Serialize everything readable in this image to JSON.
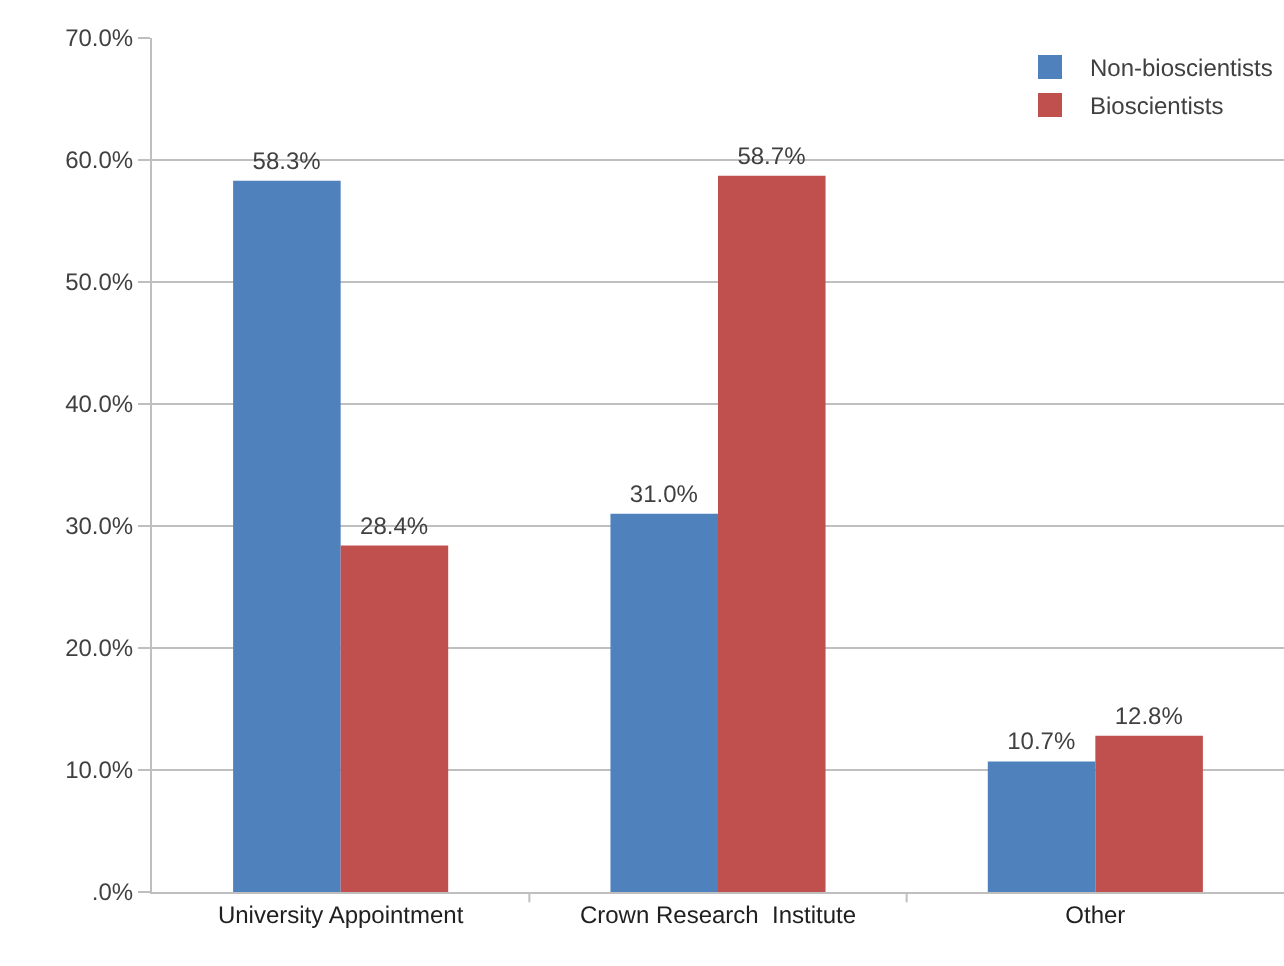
{
  "chart_data": {
    "type": "bar",
    "categories": [
      "University Appointment",
      "Crown Research  Institute",
      "Other"
    ],
    "series": [
      {
        "name": "Non-bioscientists",
        "color": "#4f81bd",
        "values": [
          58.3,
          31.0,
          10.7
        ],
        "value_labels": [
          "58.3%",
          "31.0%",
          "10.7%"
        ]
      },
      {
        "name": "Bioscientists",
        "color": "#c0504d",
        "values": [
          28.4,
          58.7,
          12.8
        ],
        "value_labels": [
          "28.4%",
          "58.7%",
          "12.8%"
        ]
      }
    ],
    "ylim": [
      0,
      70
    ],
    "yticks": [
      {
        "value": 0,
        "label": ".0%"
      },
      {
        "value": 10,
        "label": "10.0%"
      },
      {
        "value": 20,
        "label": "20.0%"
      },
      {
        "value": 30,
        "label": "30.0%"
      },
      {
        "value": 40,
        "label": "40.0%"
      },
      {
        "value": 50,
        "label": "50.0%"
      },
      {
        "value": 60,
        "label": "60.0%"
      },
      {
        "value": 70,
        "label": "70.0%"
      }
    ],
    "grid": "y",
    "legend": "top right"
  }
}
